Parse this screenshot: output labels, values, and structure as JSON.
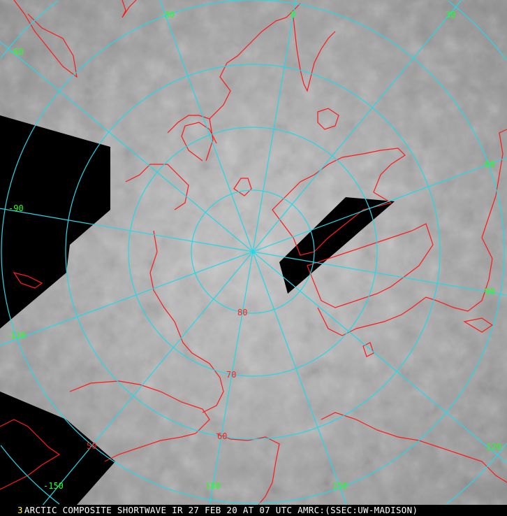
{
  "image": {
    "caption": "ARCTIC COMPOSITE SHORTWAVE IR 27 FEB 20 AT 07 UTC AMRC:(SSEC:UW-MADISON)",
    "panel_number": "3",
    "longitude_labels": [
      "-60",
      "-30",
      "0",
      "30",
      "60",
      "90",
      "120",
      "150",
      "180",
      "-150",
      "-120",
      "-90"
    ],
    "latitude_labels": [
      "80",
      "70",
      "60",
      "50"
    ],
    "colors": {
      "grid": "#22d8e8",
      "coastline": "#ff1a1a",
      "longitude_label": "#22ff22",
      "latitude_label": "#ff2020",
      "no_data": "#000000"
    }
  }
}
